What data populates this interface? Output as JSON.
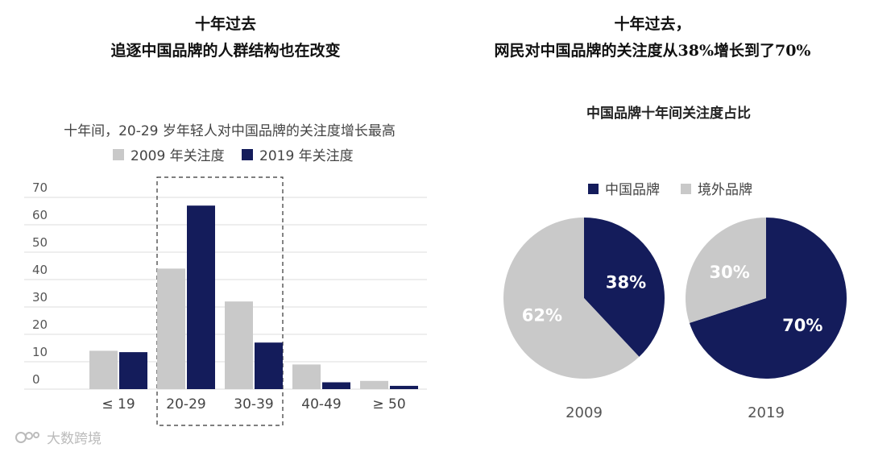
{
  "left": {
    "heading_line1": "十年过去",
    "heading_line2": "追逐中国品牌的人群结构也在改变"
  },
  "right": {
    "heading_line1": "十年过去，",
    "heading_line2": "网民对中国品牌的关注度从38%增长到了70%"
  },
  "watermark": "大数跨境",
  "chart_data": [
    {
      "type": "bar",
      "title": "十年间，20-29 岁年轻人对中国品牌的关注度增长最高",
      "categories": [
        "≤ 19",
        "20-29",
        "30-39",
        "40-49",
        "≥ 50"
      ],
      "series": [
        {
          "name": "2009 年关注度",
          "values": [
            14,
            44,
            32,
            9,
            3
          ],
          "color": "#c9c9c9"
        },
        {
          "name": "2019 年关注度",
          "values": [
            13.5,
            67,
            17,
            2.5,
            1.2
          ],
          "color": "#141c5b"
        }
      ],
      "y_ticks": [
        "70",
        "60",
        "50",
        "40",
        "30",
        "20",
        "10",
        "0"
      ],
      "ylim": [
        0,
        70
      ],
      "highlighted_categories": [
        "20-29",
        "30-39"
      ],
      "grid": true,
      "legend": "top"
    },
    {
      "type": "pie",
      "title": "中国品牌十年间关注度占比",
      "legend": [
        {
          "name": "中国品牌",
          "color": "#141c5b"
        },
        {
          "name": "境外品牌",
          "color": "#c9c9c9"
        }
      ],
      "pies": [
        {
          "year": "2009",
          "slices": [
            {
              "name": "中国品牌",
              "value": 38,
              "label": "38%",
              "color": "#141c5b"
            },
            {
              "name": "境外品牌",
              "value": 62,
              "label": "62%",
              "color": "#c9c9c9"
            }
          ]
        },
        {
          "year": "2019",
          "slices": [
            {
              "name": "中国品牌",
              "value": 70,
              "label": "70%",
              "color": "#141c5b"
            },
            {
              "name": "境外品牌",
              "value": 30,
              "label": "30%",
              "color": "#c9c9c9"
            }
          ]
        }
      ]
    }
  ]
}
